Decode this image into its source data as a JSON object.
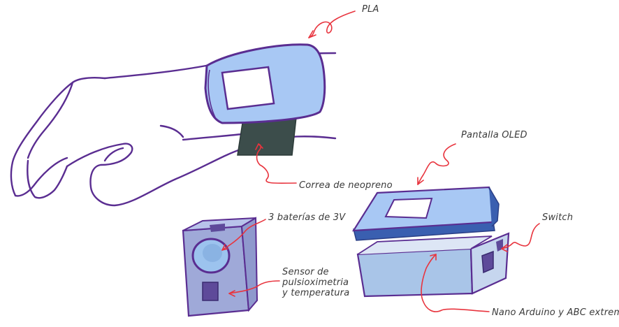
{
  "labels": {
    "pla": "PLA",
    "strap": "Correa de neopreno",
    "oled": "Pantalla OLED",
    "switch": "Switch",
    "batteries": "3 baterías de 3V",
    "sensor": "Sensor de pulsioximetria y temperatura",
    "arduino": "Nano Arduino y ABC extremo"
  },
  "colors": {
    "outline": "#5a2d91",
    "case_fill": "#a8c8f4",
    "case_side": "#b5c7ea",
    "strap": "#3c4d4b",
    "arrow": "#e8343e",
    "lid_edge": "#3a5fb0",
    "box_fill": "#a9c5e8",
    "box_side": "#c6d6ee",
    "sensor_front": "#9fa9d8",
    "sensor_top": "#b8c3ea",
    "sensor_hole": "#9cc3ee",
    "chip": "#5e4a9a"
  }
}
